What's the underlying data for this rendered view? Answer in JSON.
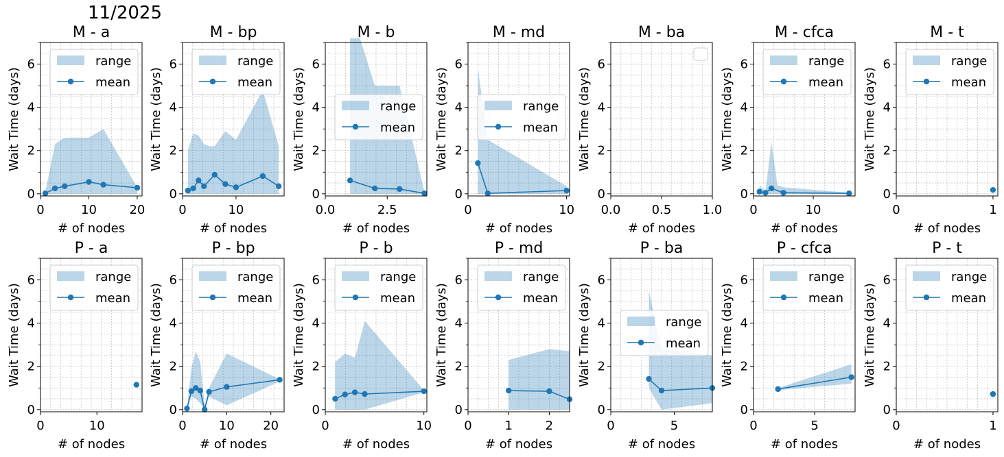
{
  "figure_title": "11/2025",
  "colors": {
    "line": "#1f77b4",
    "fill": "#1f77b4",
    "grid": "#b0b0b0"
  },
  "chart_data": [
    {
      "type": "line",
      "title": "M -  a",
      "xlabel": "# of nodes",
      "ylabel": "Wait Time (days)",
      "xlim": [
        0,
        21
      ],
      "ylim": [
        -0.1,
        7
      ],
      "xticks": [
        0,
        10,
        20
      ],
      "xtick_labels": [
        "0",
        "10",
        "20"
      ],
      "yticks": [
        0,
        2,
        4,
        6
      ],
      "grid": true,
      "legend": [
        "range",
        "mean"
      ],
      "legend_loc": "top-right",
      "series": [
        {
          "name": "mean",
          "x": [
            1,
            3,
            5,
            10,
            13,
            20
          ],
          "y": [
            0.02,
            0.25,
            0.35,
            0.55,
            0.42,
            0.28
          ]
        },
        {
          "name": "range",
          "x": [
            1,
            3,
            5,
            10,
            13,
            20
          ],
          "low": [
            0,
            0,
            0,
            0,
            0,
            0
          ],
          "high": [
            0.1,
            2.3,
            2.6,
            2.6,
            3.0,
            0.3
          ]
        }
      ]
    },
    {
      "type": "line",
      "title": "M -  bp",
      "xlabel": "# of nodes",
      "ylabel": "Wait Time (days)",
      "xlim": [
        0,
        19
      ],
      "ylim": [
        -0.1,
        7
      ],
      "xticks": [
        0,
        10
      ],
      "xtick_labels": [
        "0",
        "10"
      ],
      "yticks": [
        0,
        2,
        4,
        6
      ],
      "grid": true,
      "legend": [
        "range",
        "mean"
      ],
      "legend_loc": "top-right",
      "series": [
        {
          "name": "mean",
          "x": [
            1,
            2,
            3,
            4,
            6,
            8,
            10,
            15,
            18
          ],
          "y": [
            0.15,
            0.25,
            0.62,
            0.35,
            0.88,
            0.45,
            0.3,
            0.82,
            0.35
          ]
        },
        {
          "name": "range",
          "x": [
            1,
            2,
            3,
            4,
            5,
            6,
            8,
            10,
            15,
            18
          ],
          "low": [
            0,
            0,
            0,
            0,
            0,
            0,
            0,
            0,
            0,
            0
          ],
          "high": [
            2.0,
            2.8,
            2.7,
            2.3,
            2.2,
            2.2,
            2.9,
            2.5,
            4.8,
            2.2
          ]
        }
      ]
    },
    {
      "type": "line",
      "title": "M -  b",
      "xlabel": "# of nodes",
      "ylabel": "Wait Time (days)",
      "xlim": [
        0,
        4.1
      ],
      "ylim": [
        -0.1,
        7
      ],
      "xticks": [
        0,
        2.5
      ],
      "xtick_labels": [
        "0.0",
        "2.5"
      ],
      "yticks": [
        0,
        2,
        4,
        6
      ],
      "grid": true,
      "legend": [
        "range",
        "mean"
      ],
      "legend_loc": "center-right",
      "series": [
        {
          "name": "mean",
          "x": [
            1,
            2,
            3,
            4
          ],
          "y": [
            0.62,
            0.25,
            0.22,
            0.02
          ]
        },
        {
          "name": "range",
          "x": [
            1,
            1.4,
            2,
            3,
            4
          ],
          "low": [
            0,
            0,
            0,
            0,
            0
          ],
          "high": [
            7.2,
            7.2,
            5.0,
            5.0,
            0.1
          ]
        }
      ]
    },
    {
      "type": "line",
      "title": "M -  md",
      "xlabel": "# of nodes",
      "ylabel": "Wait Time (days)",
      "xlim": [
        0,
        10.3
      ],
      "ylim": [
        -0.1,
        7
      ],
      "xticks": [
        0,
        10
      ],
      "xtick_labels": [
        "0",
        "10"
      ],
      "yticks": [
        0,
        2,
        4,
        6
      ],
      "grid": true,
      "legend": [
        "range",
        "mean"
      ],
      "legend_loc": "center-right",
      "series": [
        {
          "name": "mean",
          "x": [
            1,
            2,
            10
          ],
          "y": [
            1.42,
            0.02,
            0.15
          ]
        },
        {
          "name": "range",
          "x": [
            1,
            2,
            10
          ],
          "low": [
            0,
            0,
            0
          ],
          "high": [
            5.8,
            2.5,
            0.35
          ]
        }
      ]
    },
    {
      "type": "line",
      "title": "M -  ba",
      "xlabel": "# of nodes",
      "ylabel": "Wait Time (days)",
      "xlim": [
        0,
        1
      ],
      "ylim": [
        -0.1,
        7
      ],
      "xticks": [
        0,
        0.5,
        1
      ],
      "xtick_labels": [
        "0.0",
        "0.5",
        "1.0"
      ],
      "yticks": [
        0,
        2,
        4,
        6
      ],
      "grid": true,
      "legend": [],
      "legend_loc": "top-right",
      "series": []
    },
    {
      "type": "line",
      "title": "M -  cfca",
      "xlabel": "# of nodes",
      "ylabel": "Wait Time (days)",
      "xlim": [
        0,
        17
      ],
      "ylim": [
        -0.1,
        7
      ],
      "xticks": [
        0,
        10
      ],
      "xtick_labels": [
        "0",
        "10"
      ],
      "yticks": [
        0,
        2,
        4,
        6
      ],
      "grid": true,
      "legend": [
        "range",
        "mean"
      ],
      "legend_loc": "top-right",
      "series": [
        {
          "name": "mean",
          "x": [
            1,
            2,
            3,
            5,
            16
          ],
          "y": [
            0.1,
            0.05,
            0.25,
            0.05,
            0.02
          ]
        },
        {
          "name": "range",
          "x": [
            1,
            2,
            3,
            4,
            5,
            16
          ],
          "low": [
            0,
            0,
            0,
            0,
            0,
            0
          ],
          "high": [
            0.4,
            0.1,
            2.4,
            0.4,
            0.3,
            0.05
          ]
        }
      ]
    },
    {
      "type": "line",
      "title": "M -  t",
      "xlabel": "# of nodes",
      "ylabel": "Wait Time (days)",
      "xlim": [
        0,
        1.05
      ],
      "ylim": [
        -0.1,
        7
      ],
      "xticks": [
        0,
        1
      ],
      "xtick_labels": [
        "0",
        "1"
      ],
      "yticks": [
        0,
        2,
        4,
        6
      ],
      "grid": true,
      "legend": [
        "range",
        "mean"
      ],
      "legend_loc": "top-right",
      "series": [
        {
          "name": "mean",
          "x": [
            1
          ],
          "y": [
            0.18
          ]
        },
        {
          "name": "range",
          "x": [
            1
          ],
          "low": [
            0.18
          ],
          "high": [
            0.18
          ]
        }
      ]
    },
    {
      "type": "line",
      "title": "P -  a",
      "xlabel": "# of nodes",
      "ylabel": "Wait Time (days)",
      "xlim": [
        0,
        18
      ],
      "ylim": [
        -0.1,
        7
      ],
      "xticks": [
        0,
        10
      ],
      "xtick_labels": [
        "0",
        "10"
      ],
      "yticks": [
        0,
        2,
        4,
        6
      ],
      "grid": true,
      "legend": [
        "range",
        "mean"
      ],
      "legend_loc": "top-right",
      "series": [
        {
          "name": "mean",
          "x": [
            17
          ],
          "y": [
            1.15
          ]
        },
        {
          "name": "range",
          "x": [
            17
          ],
          "low": [
            1.15
          ],
          "high": [
            1.15
          ]
        }
      ]
    },
    {
      "type": "line",
      "title": "P -  bp",
      "xlabel": "# of nodes",
      "ylabel": "Wait Time (days)",
      "xlim": [
        0,
        23
      ],
      "ylim": [
        -0.1,
        7
      ],
      "xticks": [
        0,
        10,
        20
      ],
      "xtick_labels": [
        "0",
        "10",
        "20"
      ],
      "yticks": [
        0,
        2,
        4,
        6
      ],
      "grid": true,
      "legend": [
        "range",
        "mean"
      ],
      "legend_loc": "top-right",
      "series": [
        {
          "name": "mean",
          "x": [
            1,
            2,
            3,
            4,
            5,
            6,
            10,
            22
          ],
          "y": [
            0.05,
            0.85,
            1.0,
            0.88,
            0.0,
            0.82,
            1.05,
            1.38
          ]
        },
        {
          "name": "range",
          "x": [
            1,
            2,
            3,
            4,
            5,
            6,
            10,
            22
          ],
          "low": [
            0,
            0.6,
            0.5,
            0.3,
            0,
            0.6,
            0.2,
            1.3
          ],
          "high": [
            0.1,
            1.9,
            2.7,
            2.2,
            0.2,
            1.0,
            2.6,
            1.4
          ]
        }
      ]
    },
    {
      "type": "line",
      "title": "P -  b",
      "xlabel": "# of nodes",
      "ylabel": "Wait Time (days)",
      "xlim": [
        0,
        10.3
      ],
      "ylim": [
        -0.1,
        7
      ],
      "xticks": [
        0,
        10
      ],
      "xtick_labels": [
        "0",
        "10"
      ],
      "yticks": [
        0,
        2,
        4,
        6
      ],
      "grid": true,
      "legend": [
        "range",
        "mean"
      ],
      "legend_loc": "top-right",
      "series": [
        {
          "name": "mean",
          "x": [
            1,
            2,
            3,
            4,
            10
          ],
          "y": [
            0.5,
            0.7,
            0.8,
            0.72,
            0.85
          ]
        },
        {
          "name": "range",
          "x": [
            1,
            2,
            3,
            4,
            10
          ],
          "low": [
            0,
            0,
            0,
            0,
            0.8
          ],
          "high": [
            2.2,
            2.6,
            2.4,
            4.1,
            0.9
          ]
        }
      ]
    },
    {
      "type": "line",
      "title": "P -  md",
      "xlabel": "# of nodes",
      "ylabel": "Wait Time (days)",
      "xlim": [
        0,
        2.5
      ],
      "ylim": [
        -0.1,
        7
      ],
      "xticks": [
        0,
        1,
        2
      ],
      "xtick_labels": [
        "0",
        "1",
        "2"
      ],
      "yticks": [
        0,
        2,
        4,
        6
      ],
      "grid": true,
      "legend": [
        "range",
        "mean"
      ],
      "legend_loc": "top-right",
      "series": [
        {
          "name": "mean",
          "x": [
            1,
            2,
            2.5
          ],
          "y": [
            0.88,
            0.85,
            0.48
          ]
        },
        {
          "name": "range",
          "x": [
            1,
            2,
            2.5
          ],
          "low": [
            0,
            0,
            0
          ],
          "high": [
            2.3,
            2.8,
            2.7
          ]
        }
      ]
    },
    {
      "type": "line",
      "title": "P -  ba",
      "xlabel": "# of nodes",
      "ylabel": "Wait Time (days)",
      "xlim": [
        0,
        8
      ],
      "ylim": [
        -0.1,
        7
      ],
      "xticks": [
        0,
        5
      ],
      "xtick_labels": [
        "0",
        "5"
      ],
      "yticks": [
        0,
        2,
        4,
        6
      ],
      "grid": true,
      "legend": [
        "range",
        "mean"
      ],
      "legend_loc": "center-right",
      "series": [
        {
          "name": "mean",
          "x": [
            3,
            4,
            8
          ],
          "y": [
            1.42,
            0.88,
            1.0
          ]
        },
        {
          "name": "range",
          "x": [
            3,
            4,
            8
          ],
          "low": [
            1.0,
            0.0,
            0.3
          ],
          "high": [
            5.5,
            2.8,
            2.5
          ]
        }
      ]
    },
    {
      "type": "line",
      "title": "P -  cfca",
      "xlabel": "# of nodes",
      "ylabel": "Wait Time (days)",
      "xlim": [
        0,
        8.3
      ],
      "ylim": [
        -0.1,
        7
      ],
      "xticks": [
        0,
        5
      ],
      "xtick_labels": [
        "0",
        "5"
      ],
      "yticks": [
        0,
        2,
        4,
        6
      ],
      "grid": true,
      "legend": [
        "range",
        "mean"
      ],
      "legend_loc": "top-right",
      "series": [
        {
          "name": "mean",
          "x": [
            2,
            8
          ],
          "y": [
            0.95,
            1.5
          ]
        },
        {
          "name": "range",
          "x": [
            2,
            8
          ],
          "low": [
            0.9,
            1.2
          ],
          "high": [
            1.0,
            2.1
          ]
        }
      ]
    },
    {
      "type": "line",
      "title": "P -  t",
      "xlabel": "# of nodes",
      "ylabel": "Wait Time (days)",
      "xlim": [
        0,
        1.05
      ],
      "ylim": [
        -0.1,
        7
      ],
      "xticks": [
        0,
        1
      ],
      "xtick_labels": [
        "0",
        "1"
      ],
      "yticks": [
        0,
        2,
        4,
        6
      ],
      "grid": true,
      "legend": [
        "range",
        "mean"
      ],
      "legend_loc": "top-right",
      "series": [
        {
          "name": "mean",
          "x": [
            1
          ],
          "y": [
            0.72
          ]
        },
        {
          "name": "range",
          "x": [
            1
          ],
          "low": [
            0.72
          ],
          "high": [
            0.72
          ]
        }
      ]
    }
  ]
}
